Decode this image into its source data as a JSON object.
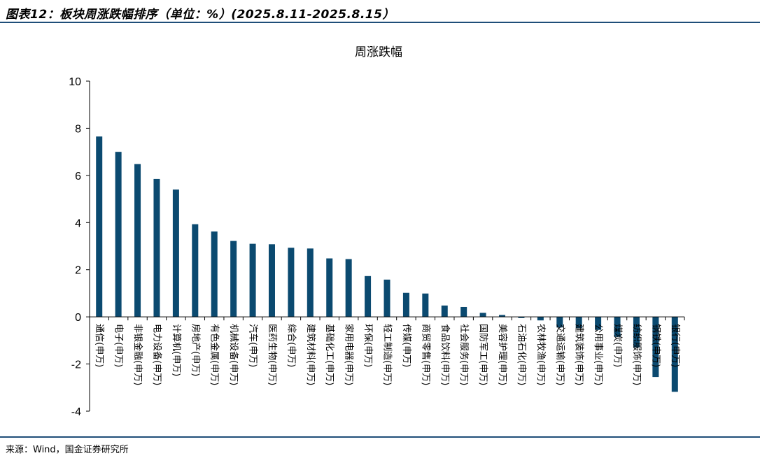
{
  "page": {
    "figure_title": "图表12：板块周涨跌幅排序（单位：%）(2025.8.11-2025.8.15）",
    "source": "来源：Wind，国金证券研究所"
  },
  "colors": {
    "bar": "#0b4a70",
    "rule": "#1f4e79",
    "axis": "#000000"
  },
  "chart_data": {
    "type": "bar",
    "title": "周涨跌幅",
    "xlabel": "",
    "ylabel": "",
    "ylim": [
      -4,
      10
    ],
    "yticks": [
      -4,
      -2,
      0,
      2,
      4,
      6,
      8,
      10
    ],
    "grid": false,
    "legend": "none",
    "categories": [
      "通信(申万)",
      "电子(申万)",
      "非银金融(申万)",
      "电力设备(申万)",
      "计算机(申万)",
      "房地产(申万)",
      "有色金属(申万)",
      "机械设备(申万)",
      "汽车(申万)",
      "医药生物(申万)",
      "综合(申万)",
      "建筑材料(申万)",
      "基础化工(申万)",
      "家用电器(申万)",
      "环保(申万)",
      "轻工制造(申万)",
      "传媒(申万)",
      "商贸零售(申万)",
      "食品饮料(申万)",
      "社会服务(申万)",
      "国防军工(申万)",
      "美容护理(申万)",
      "石油石化(申万)",
      "农林牧渔(申万)",
      "交通运输(申万)",
      "建筑装饰(申万)",
      "公用事业(申万)",
      "煤炭(申万)",
      "纺织服饰(申万)",
      "钢铁(申万)",
      "银行(申万)"
    ],
    "values": [
      7.65,
      7.0,
      6.48,
      5.85,
      5.4,
      3.93,
      3.62,
      3.22,
      3.1,
      3.08,
      2.93,
      2.9,
      2.48,
      2.45,
      1.73,
      1.58,
      1.02,
      0.99,
      0.48,
      0.42,
      0.17,
      0.08,
      -0.05,
      -0.15,
      -0.45,
      -0.48,
      -0.55,
      -0.85,
      -1.3,
      -2.55,
      -3.18
    ]
  }
}
